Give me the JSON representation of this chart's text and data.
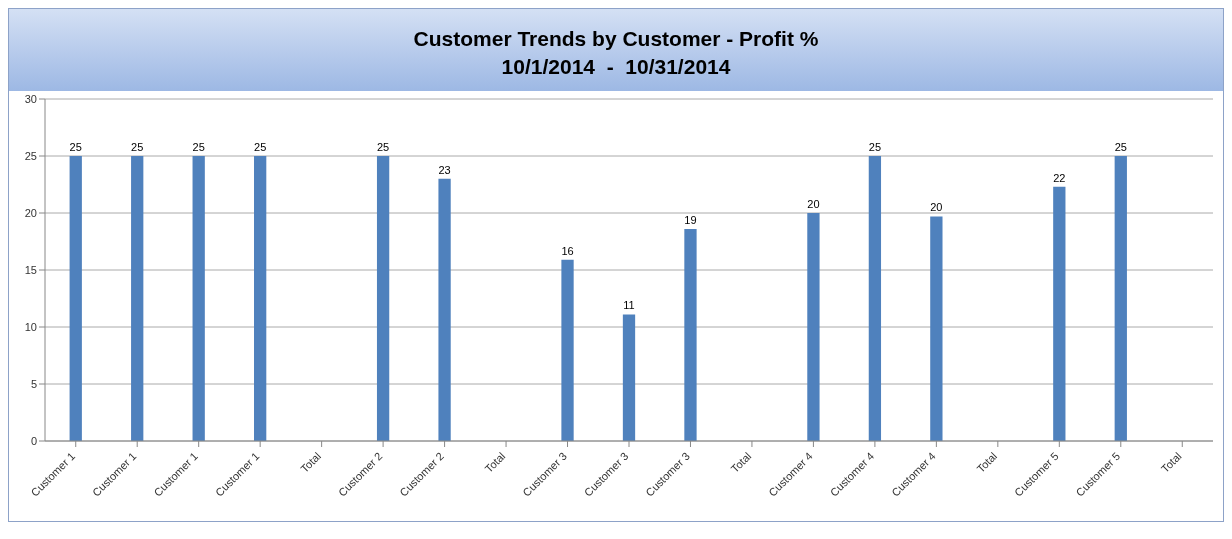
{
  "chart_data": {
    "type": "bar",
    "title": "Customer Trends by Customer - Profit %",
    "subtitle": "10/1/2014  -  10/31/2014",
    "categories": [
      "Customer 1",
      "Customer 1",
      "Customer 1",
      "Customer 1",
      "Total",
      "Customer 2",
      "Customer 2",
      "Total",
      "Customer 3",
      "Customer 3",
      "Customer 3",
      "Total",
      "Customer 4",
      "Customer 4",
      "Customer 4",
      "Total",
      "Customer 5",
      "Customer 5",
      "Total"
    ],
    "values": [
      25,
      25,
      25,
      25,
      null,
      25,
      23,
      null,
      15.9,
      11.1,
      18.6,
      null,
      20,
      25,
      19.7,
      null,
      22.3,
      25,
      null
    ],
    "value_labels": [
      "25",
      "25",
      "25",
      "25",
      null,
      "25",
      "23",
      null,
      "16",
      "11",
      "19",
      null,
      "20",
      "25",
      "20",
      null,
      "22",
      "25",
      null
    ],
    "color": "#4f81bd",
    "ylim": [
      0,
      30
    ],
    "yticks": [
      0,
      5,
      10,
      15,
      20,
      25,
      30
    ],
    "grid": "y"
  }
}
